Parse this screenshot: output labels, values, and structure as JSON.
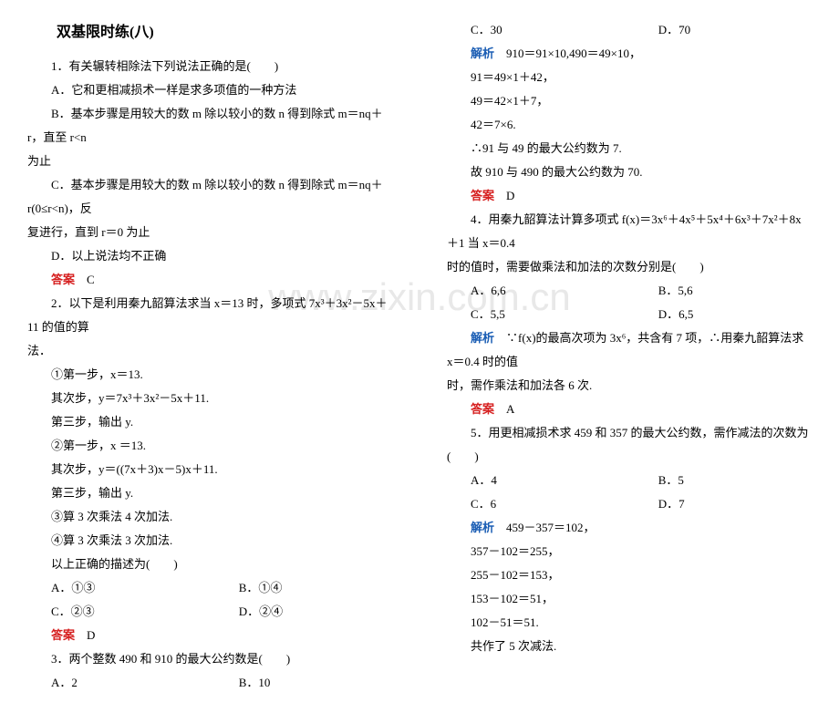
{
  "watermark": "www.zixin.com.cn",
  "left": {
    "title": "双基限时练(八)",
    "q1": {
      "stem": "1．有关辗转相除法下列说法正确的是(　　)",
      "optA": "A．它和更相减损术一样是求多项值的一种方法",
      "optB1": "B．基本步骤是用较大的数 m 除以较小的数 n 得到除式 m＝nq＋r，直至 r<n",
      "optB2": "为止",
      "optC1": "C．基本步骤是用较大的数 m 除以较小的数 n 得到除式 m＝nq＋r(0≤r<n)，反",
      "optC2": "复进行，直到 r＝0 为止",
      "optD": "D．以上说法均不正确",
      "ansLabel": "答案",
      "ans": "C"
    },
    "q2": {
      "stem1": "2．以下是利用秦九韶算法求当 x＝13 时，多项式 7x³＋3x²－5x＋11 的值的算",
      "stem2": "法．",
      "s1": "①第一步，x＝13.",
      "s2": "其次步，y＝7x³＋3x²－5x＋11.",
      "s3": "第三步，输出 y.",
      "s4": "②第一步，x ＝13.",
      "s5": "其次步，y＝((7x＋3)x－5)x＋11.",
      "s6": "第三步，输出 y.",
      "s7": "③算 3 次乘法 4 次加法.",
      "s8": "④算 3 次乘法 3 次加法.",
      "ask": "以上正确的描述为(　　)",
      "optA": "A．①③",
      "optB": "B．①④",
      "optC": "C．②③",
      "optD": "D．②④",
      "ansLabel": "答案",
      "ans": "D"
    },
    "q3": {
      "stem": "3．两个整数 490 和 910 的最大公约数是(　　)",
      "optA": "A．2",
      "optB": "B．10"
    }
  },
  "right": {
    "q3_cont": {
      "optC": "C．30",
      "optD": "D．70",
      "jxLabel": "解析",
      "jx1": "910＝91×10,490＝49×10，",
      "jx2": "91＝49×1＋42，",
      "jx3": "49＝42×1＋7，",
      "jx4": "42＝7×6.",
      "jx5": "∴91 与 49 的最大公约数为 7.",
      "jx6": "故 910 与 490 的最大公约数为 70.",
      "ansLabel": "答案",
      "ans": "D"
    },
    "q4": {
      "stem1": "4．用秦九韶算法计算多项式 f(x)＝3x⁶＋4x⁵＋5x⁴＋6x³＋7x²＋8x＋1 当 x＝0.4",
      "stem2": "时的值时，需要做乘法和加法的次数分别是(　　)",
      "optA": "A．6,6",
      "optB": "B．5,6",
      "optC": "C．5,5",
      "optD": "D．6,5",
      "jxLabel": "解析",
      "jx1": "∵f(x)的最高次项为 3x⁶，共含有 7 项，∴用秦九韶算法求 x＝0.4 时的值",
      "jx2": "时，需作乘法和加法各 6 次.",
      "ansLabel": "答案",
      "ans": "A"
    },
    "q5": {
      "stem": "5．用更相减损术求 459 和 357 的最大公约数，需作减法的次数为(　　)",
      "optA": "A．4",
      "optB": "B．5",
      "optC": "C．6",
      "optD": "D．7",
      "jxLabel": "解析",
      "jx1": "459－357＝102，",
      "jx2": "357－102＝255，",
      "jx3": "255－102＝153，",
      "jx4": "153－102＝51，",
      "jx5": "102－51＝51.",
      "jx6": "共作了 5 次减法."
    }
  }
}
